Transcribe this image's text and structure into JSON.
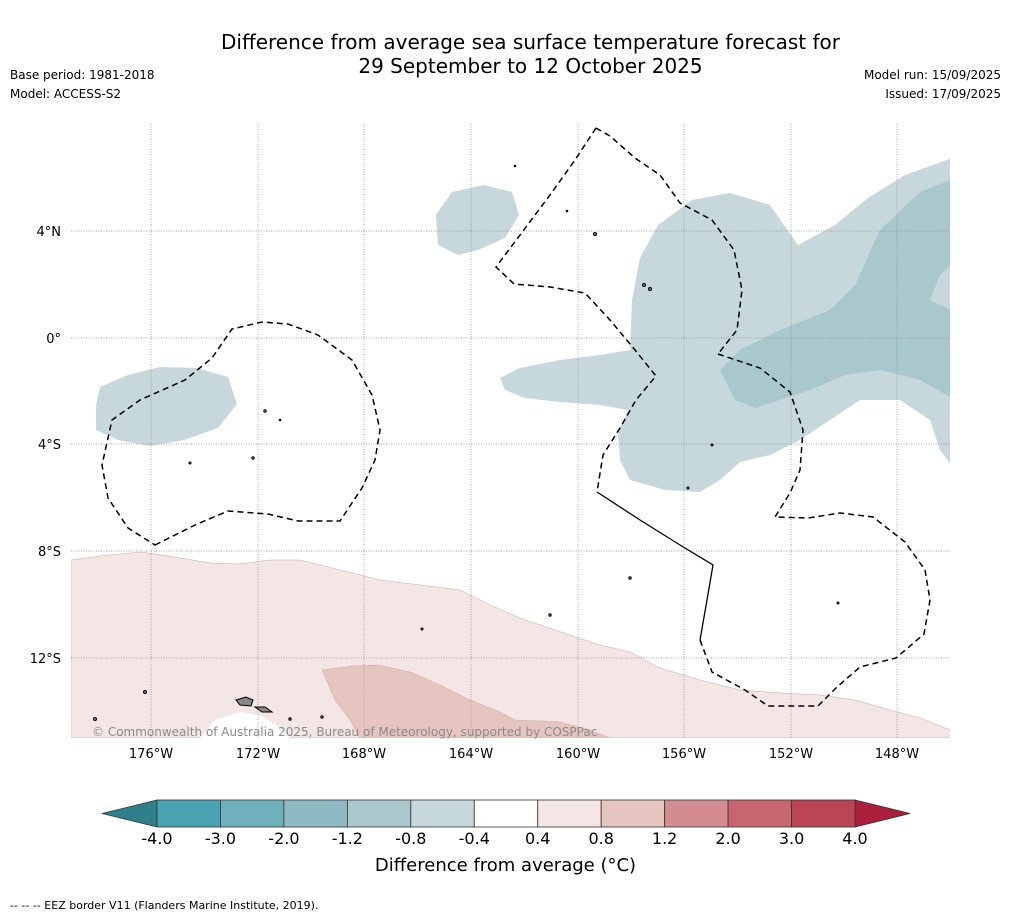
{
  "header": {
    "title_line1": "Difference from average sea surface temperature forecast for",
    "title_line2": "29 September to 12 October 2025",
    "base_period": "Base period: 1981-2018",
    "model": "Model: ACCESS-S2",
    "model_run": "Model run: 15/09/2025",
    "issued": "Issued: 17/09/2025"
  },
  "map": {
    "lat_labels": [
      "4°N",
      "0°",
      "4°S",
      "8°S",
      "12°S"
    ],
    "lon_labels": [
      "176°W",
      "172°W",
      "168°W",
      "164°W",
      "160°W",
      "156°W",
      "152°W",
      "148°W"
    ],
    "copyright": "© Commonwealth of Australia 2025, Bureau of Meteorology, supported by COSPPac"
  },
  "colorbar": {
    "ticks": [
      "-4.0",
      "-3.0",
      "-2.0",
      "-1.2",
      "-0.8",
      "-0.4",
      "0.4",
      "0.8",
      "1.2",
      "2.0",
      "3.0",
      "4.0"
    ],
    "colors": [
      "#2f7f8a",
      "#4aa3b3",
      "#6fb0bd",
      "#8fbac3",
      "#a8c8cd",
      "#c7d8dc",
      "#ffffff",
      "#f4e6e4",
      "#e6c5c0",
      "#d48c93",
      "#c7666f",
      "#bc4554",
      "#ab1f3a"
    ],
    "title": "Difference from average (°C)"
  },
  "footer": {
    "legend": "-- -- -- EEZ border V11 (Flanders Marine Institute, 2019)."
  }
}
